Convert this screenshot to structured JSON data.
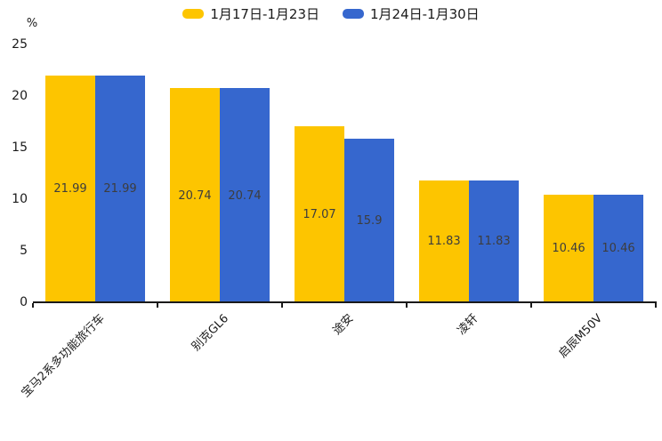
{
  "chart_data": {
    "type": "bar",
    "title": "",
    "ylabel": "%",
    "xlabel": "",
    "ylim": [
      0,
      25
    ],
    "yticks": [
      0,
      5,
      10,
      15,
      20,
      25
    ],
    "grid": false,
    "legend_position": "top-center",
    "categories": [
      "宝马2系多功能旅行车",
      "别克GL6",
      "途安",
      "凌轩",
      "启辰M50V"
    ],
    "series": [
      {
        "name": "1月17日-1月23日",
        "color": "#FDC500",
        "values": [
          21.99,
          20.74,
          17.07,
          11.83,
          10.46
        ]
      },
      {
        "name": "1月24日-1月30日",
        "color": "#3667CE",
        "values": [
          21.99,
          20.74,
          15.9,
          11.83,
          10.46
        ]
      }
    ],
    "value_labels_shown": true,
    "value_label_color": "#3d3d3d",
    "axis_color": "#1a1a1a"
  }
}
